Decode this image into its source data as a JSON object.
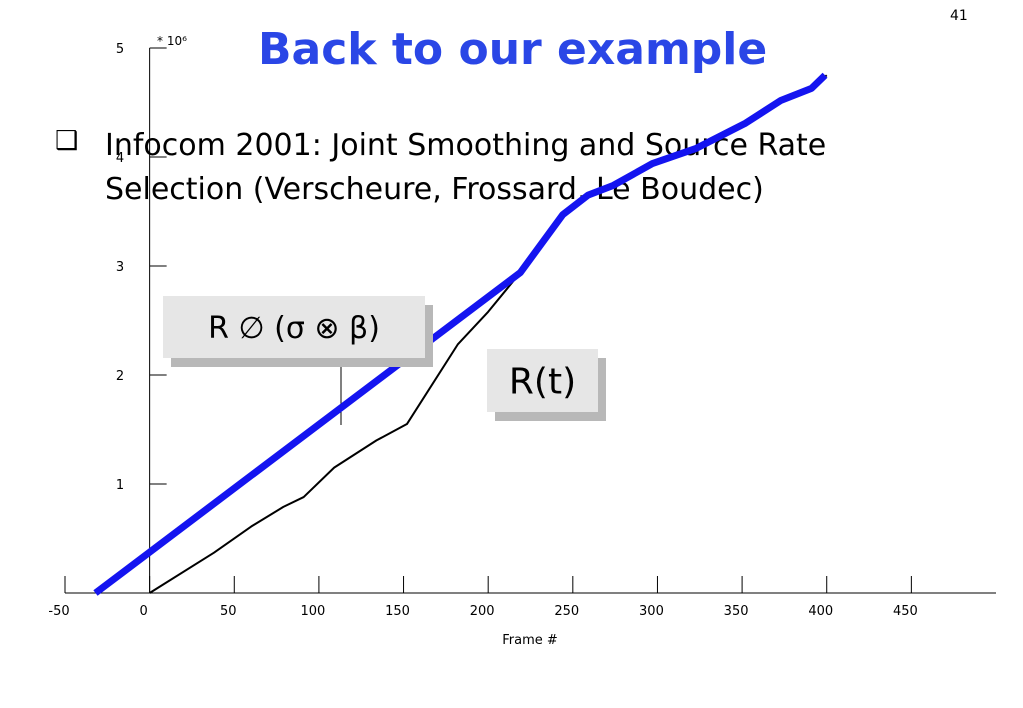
{
  "slide_number": "41",
  "title": "Back to our example",
  "bullet": {
    "lines": [
      "Infocom 2001: Joint Smoothing and Source Rate",
      "Selection (Verscheure, Frossard, Le Boudec)"
    ]
  },
  "chart_data": {
    "type": "line",
    "x_label": "Frame #",
    "y_unit": "* 10⁶",
    "xlim": [
      -50,
      500
    ],
    "xticks": [
      -50,
      0,
      50,
      100,
      150,
      200,
      250,
      300,
      350,
      400,
      450
    ],
    "ylim": [
      0,
      5
    ],
    "yticks": [
      1,
      2,
      3,
      4,
      5
    ],
    "series": [
      {
        "name": "R ∅ (σ ⊗ β)",
        "color": "#1414f0",
        "x": [
          -32,
          219,
          244,
          259,
          274,
          297,
          323,
          352,
          373,
          391,
          399
        ],
        "values": [
          0,
          2.94,
          3.47,
          3.65,
          3.74,
          3.94,
          4.08,
          4.31,
          4.52,
          4.63,
          4.75
        ]
      },
      {
        "name": "R(t)",
        "color": "#000000",
        "x": [
          0,
          38,
          60,
          79,
          91,
          109,
          134,
          152,
          182,
          200,
          219,
          244,
          259,
          274,
          297,
          323,
          352,
          373,
          391,
          400
        ],
        "values": [
          0,
          0.37,
          0.61,
          0.79,
          0.88,
          1.15,
          1.4,
          1.55,
          2.28,
          2.58,
          2.94,
          3.47,
          3.65,
          3.74,
          3.94,
          4.08,
          4.31,
          4.52,
          4.63,
          4.75
        ]
      }
    ]
  }
}
